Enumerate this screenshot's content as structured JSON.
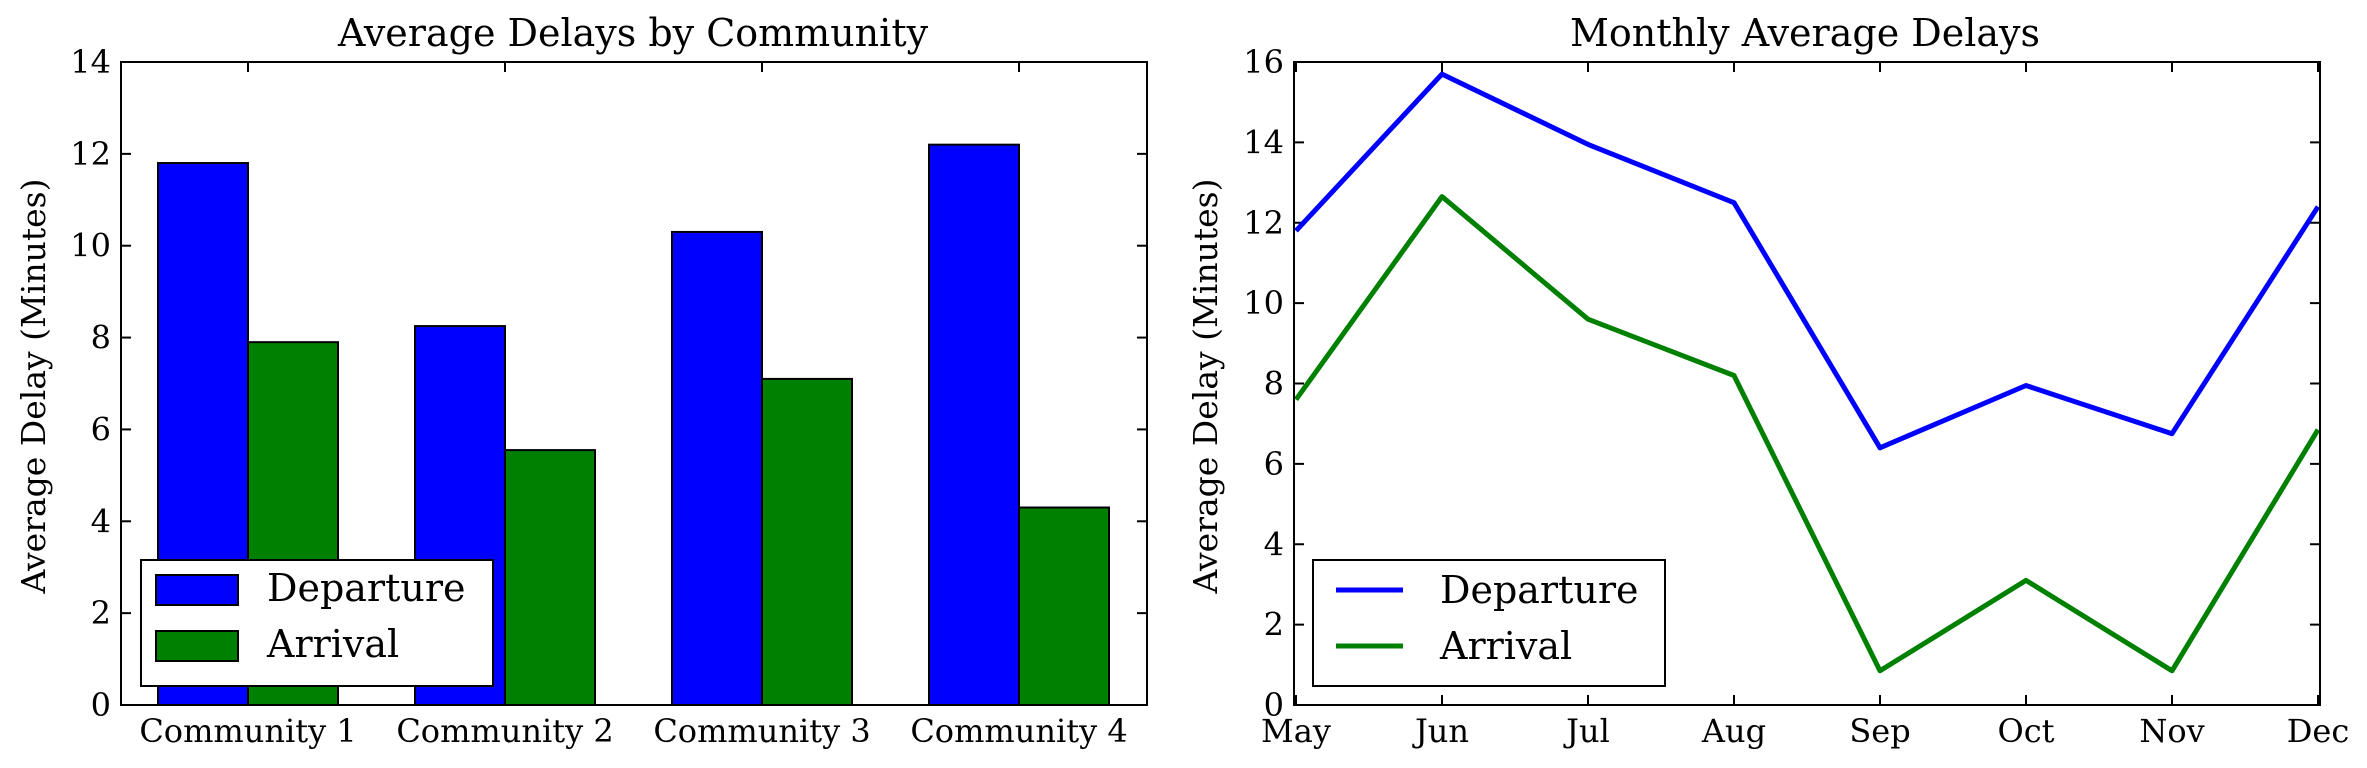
{
  "chart_data": [
    {
      "type": "bar",
      "title": "Average Delays by Community",
      "xlabel": "",
      "ylabel": "Average Delay (Minutes)",
      "categories": [
        "Community 1",
        "Community 2",
        "Community 3",
        "Community 4"
      ],
      "series": [
        {
          "name": "Departure",
          "color": "#0000ff",
          "values": [
            11.8,
            8.25,
            10.3,
            12.2
          ]
        },
        {
          "name": "Arrival",
          "color": "#008000",
          "values": [
            7.9,
            5.55,
            7.1,
            4.3
          ]
        }
      ],
      "ylim": [
        0,
        14
      ],
      "yticks": [
        0,
        2,
        4,
        6,
        8,
        10,
        12,
        14
      ],
      "grid": false,
      "legend": "lower-left"
    },
    {
      "type": "line",
      "title": "Monthly Average Delays",
      "xlabel": "",
      "ylabel": "Average Delay (Minutes)",
      "x": [
        "May",
        "Jun",
        "Jul",
        "Aug",
        "Sep",
        "Oct",
        "Nov",
        "Dec"
      ],
      "series": [
        {
          "name": "Departure",
          "color": "#0000ff",
          "values": [
            11.8,
            15.7,
            13.95,
            12.5,
            6.4,
            7.95,
            6.75,
            12.4
          ]
        },
        {
          "name": "Arrival",
          "color": "#008000",
          "values": [
            7.6,
            12.65,
            9.6,
            8.2,
            0.85,
            3.1,
            0.85,
            6.85
          ]
        }
      ],
      "ylim": [
        0,
        16
      ],
      "yticks": [
        0,
        2,
        4,
        6,
        8,
        10,
        12,
        14,
        16
      ],
      "grid": false,
      "legend": "lower-left"
    }
  ]
}
